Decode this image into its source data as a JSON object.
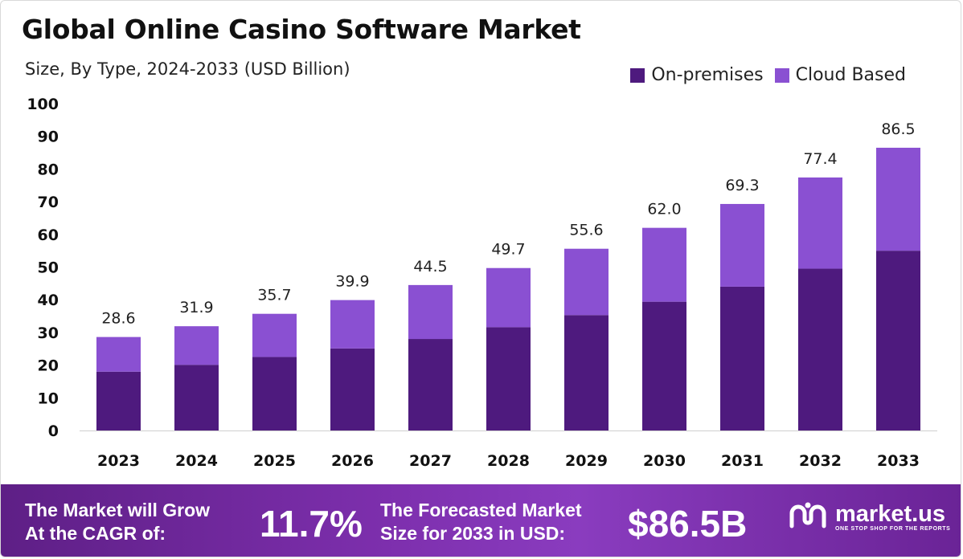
{
  "header": {
    "title": "Global Online Casino Software Market",
    "subtitle": "Size, By Type, 2024-2033 (USD Billion)"
  },
  "legend": [
    {
      "label": "On-premises",
      "color": "#4e1a7e"
    },
    {
      "label": "Cloud Based",
      "color": "#8a50d2"
    }
  ],
  "chart_data": {
    "type": "bar",
    "stacked": true,
    "categories": [
      "2023",
      "2024",
      "2025",
      "2026",
      "2027",
      "2028",
      "2029",
      "2030",
      "2031",
      "2032",
      "2033"
    ],
    "series": [
      {
        "name": "On-premises",
        "color": "#4e1a7e",
        "values": [
          18.0,
          20.1,
          22.5,
          25.1,
          28.0,
          31.6,
          35.3,
          39.4,
          44.0,
          49.5,
          55.0
        ]
      },
      {
        "name": "Cloud Based",
        "color": "#8a50d2",
        "values": [
          10.6,
          11.8,
          13.2,
          14.8,
          16.5,
          18.1,
          20.3,
          22.6,
          25.3,
          27.9,
          31.5
        ]
      }
    ],
    "totals": [
      "28.6",
      "31.9",
      "35.7",
      "39.9",
      "44.5",
      "49.7",
      "55.6",
      "62.0",
      "69.3",
      "77.4",
      "86.5"
    ],
    "y_ticks": [
      "0",
      "10",
      "20",
      "30",
      "40",
      "50",
      "60",
      "70",
      "80",
      "90",
      "100"
    ],
    "ylim": [
      0,
      100
    ],
    "grid": false,
    "legend_position": "top-right",
    "xlabel": "",
    "ylabel": ""
  },
  "footer": {
    "cagr_label_line1": "The Market will Grow",
    "cagr_label_line2": "At the CAGR of:",
    "cagr_value": "11.7%",
    "forecast_label_line1": "The Forecasted Market",
    "forecast_label_line2": "Size for 2033 in USD:",
    "forecast_value": "$86.5B",
    "brand_name": "market.us",
    "brand_tagline": "ONE STOP SHOP FOR THE REPORTS",
    "brand_icon": "market-us-logo-icon"
  }
}
